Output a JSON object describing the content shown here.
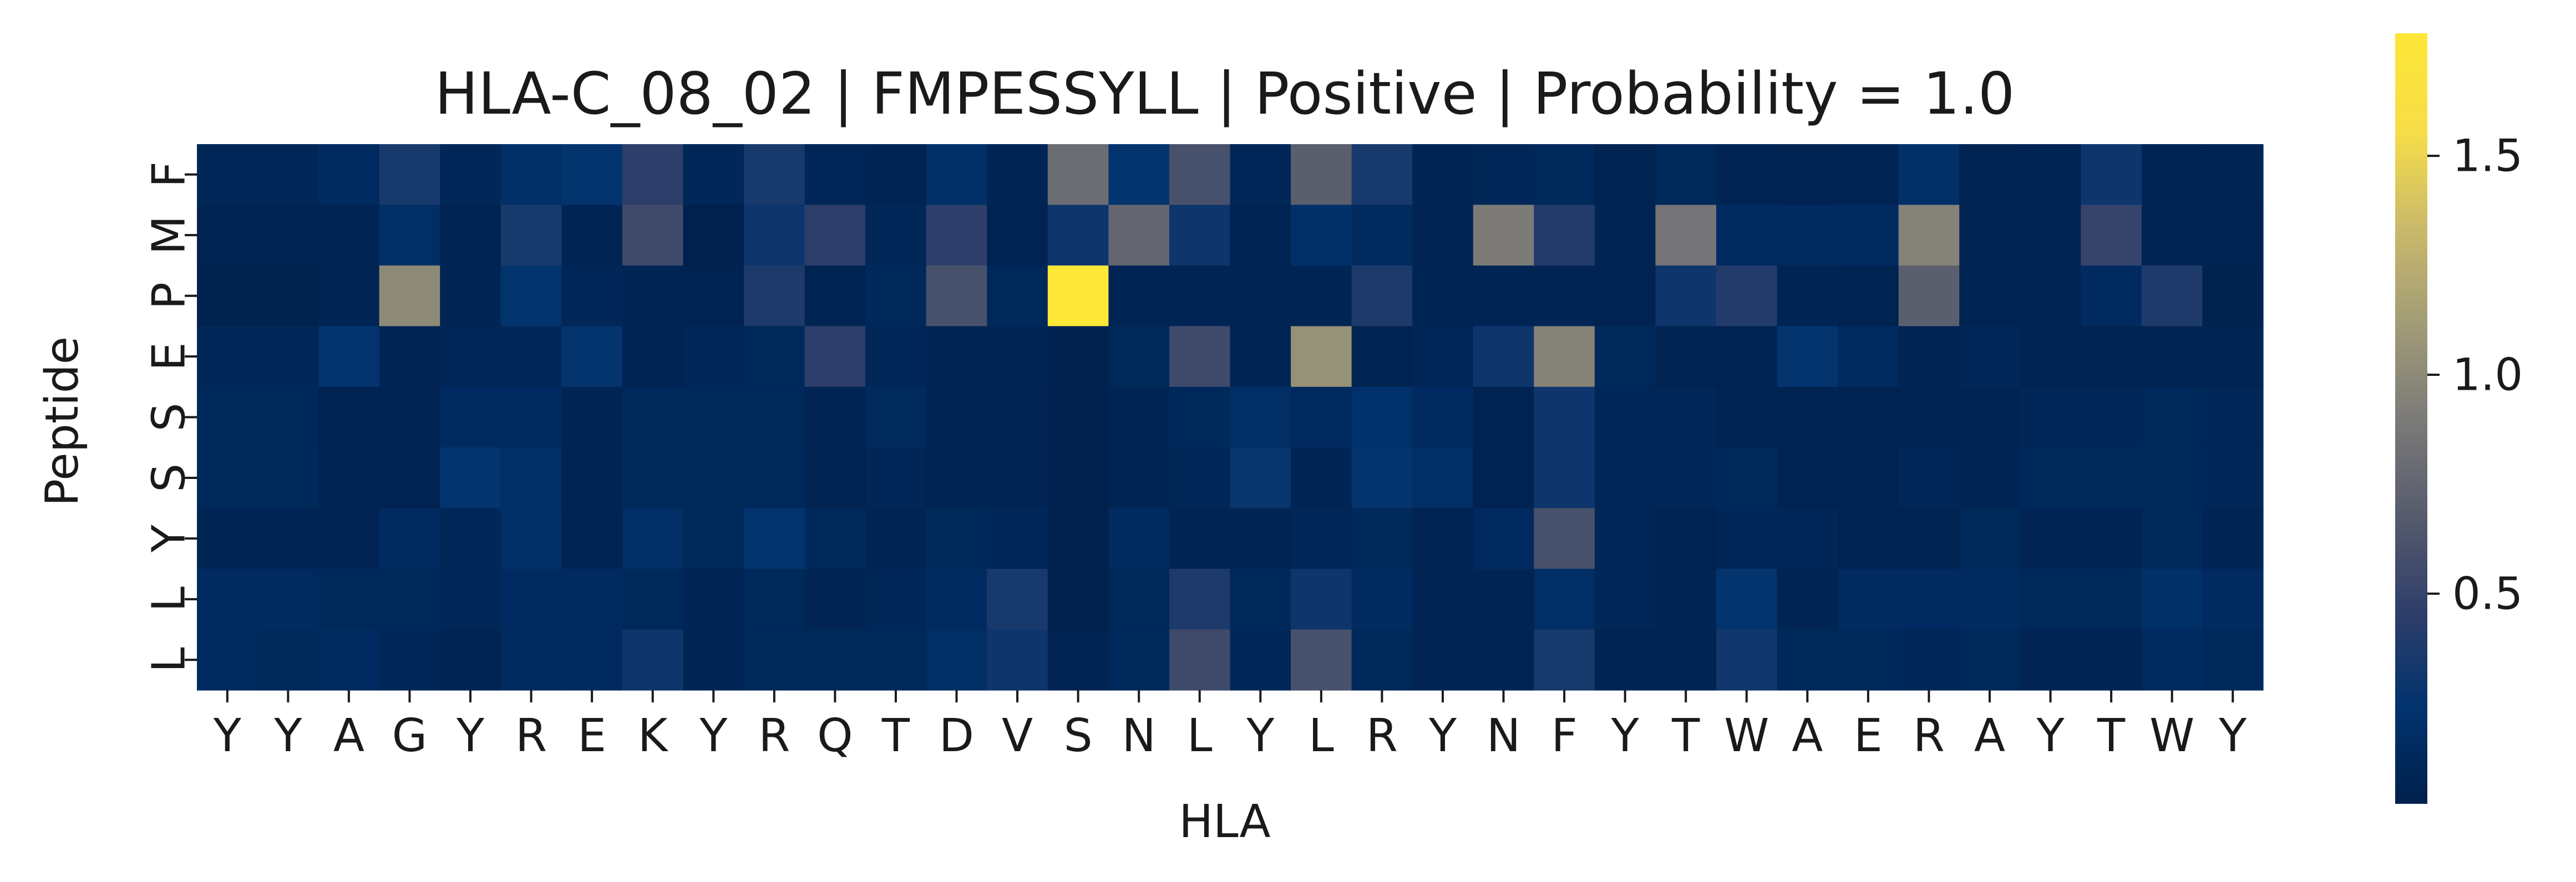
{
  "chart_data": {
    "type": "heatmap",
    "title": "HLA-C_08_02 | FMPESSYLL | Positive | Probability = 1.0",
    "xlabel": "HLA",
    "ylabel": "Peptide",
    "x_categories": [
      "Y",
      "Y",
      "A",
      "G",
      "Y",
      "R",
      "E",
      "K",
      "Y",
      "R",
      "Q",
      "T",
      "D",
      "V",
      "S",
      "N",
      "L",
      "Y",
      "L",
      "R",
      "Y",
      "N",
      "F",
      "Y",
      "T",
      "W",
      "A",
      "E",
      "R",
      "A",
      "Y",
      "T",
      "W",
      "Y"
    ],
    "y_categories": [
      "F",
      "M",
      "P",
      "E",
      "S",
      "S",
      "Y",
      "L",
      "L"
    ],
    "values": [
      [
        0.1,
        0.1,
        0.15,
        0.35,
        0.1,
        0.2,
        0.25,
        0.45,
        0.1,
        0.35,
        0.1,
        0.08,
        0.2,
        0.08,
        0.8,
        0.25,
        0.6,
        0.1,
        0.7,
        0.35,
        0.08,
        0.1,
        0.12,
        0.05,
        0.12,
        0.08,
        0.06,
        0.08,
        0.2,
        0.06,
        0.07,
        0.3,
        0.08,
        0.08
      ],
      [
        0.06,
        0.06,
        0.08,
        0.18,
        0.06,
        0.35,
        0.08,
        0.55,
        0.03,
        0.3,
        0.45,
        0.1,
        0.45,
        0.05,
        0.3,
        0.75,
        0.3,
        0.05,
        0.2,
        0.14,
        0.08,
        0.9,
        0.4,
        0.08,
        0.85,
        0.15,
        0.15,
        0.15,
        0.95,
        0.08,
        0.05,
        0.5,
        0.08,
        0.05
      ],
      [
        0.04,
        0.04,
        0.07,
        1.0,
        0.07,
        0.25,
        0.1,
        0.08,
        0.06,
        0.38,
        0.06,
        0.12,
        0.6,
        0.12,
        1.78,
        0.08,
        0.08,
        0.08,
        0.08,
        0.38,
        0.08,
        0.08,
        0.08,
        0.05,
        0.3,
        0.4,
        0.08,
        0.05,
        0.7,
        0.05,
        0.05,
        0.15,
        0.38,
        0.04
      ],
      [
        0.1,
        0.1,
        0.25,
        0.07,
        0.1,
        0.1,
        0.25,
        0.05,
        0.1,
        0.12,
        0.45,
        0.1,
        0.08,
        0.08,
        0.03,
        0.12,
        0.55,
        0.07,
        1.05,
        0.05,
        0.1,
        0.3,
        0.95,
        0.12,
        0.06,
        0.05,
        0.25,
        0.15,
        0.07,
        0.1,
        0.05,
        0.05,
        0.05,
        0.07
      ],
      [
        0.12,
        0.12,
        0.06,
        0.06,
        0.15,
        0.15,
        0.08,
        0.12,
        0.12,
        0.12,
        0.07,
        0.13,
        0.07,
        0.07,
        0.03,
        0.08,
        0.12,
        0.18,
        0.15,
        0.22,
        0.15,
        0.05,
        0.3,
        0.1,
        0.1,
        0.06,
        0.05,
        0.06,
        0.07,
        0.07,
        0.1,
        0.1,
        0.12,
        0.1
      ],
      [
        0.12,
        0.12,
        0.07,
        0.05,
        0.25,
        0.18,
        0.08,
        0.12,
        0.12,
        0.12,
        0.05,
        0.1,
        0.07,
        0.07,
        0.03,
        0.08,
        0.1,
        0.28,
        0.08,
        0.25,
        0.18,
        0.05,
        0.3,
        0.1,
        0.1,
        0.12,
        0.06,
        0.06,
        0.1,
        0.07,
        0.12,
        0.12,
        0.12,
        0.1
      ],
      [
        0.08,
        0.08,
        0.08,
        0.15,
        0.1,
        0.2,
        0.07,
        0.18,
        0.12,
        0.25,
        0.12,
        0.07,
        0.12,
        0.1,
        0.03,
        0.15,
        0.08,
        0.08,
        0.1,
        0.12,
        0.06,
        0.15,
        0.6,
        0.1,
        0.05,
        0.1,
        0.1,
        0.05,
        0.05,
        0.12,
        0.08,
        0.08,
        0.12,
        0.08
      ],
      [
        0.15,
        0.15,
        0.12,
        0.12,
        0.1,
        0.15,
        0.15,
        0.12,
        0.07,
        0.12,
        0.08,
        0.1,
        0.15,
        0.35,
        0.03,
        0.12,
        0.38,
        0.12,
        0.3,
        0.15,
        0.08,
        0.08,
        0.18,
        0.1,
        0.08,
        0.25,
        0.08,
        0.15,
        0.15,
        0.15,
        0.12,
        0.12,
        0.2,
        0.15
      ],
      [
        0.15,
        0.12,
        0.15,
        0.1,
        0.08,
        0.15,
        0.15,
        0.3,
        0.08,
        0.12,
        0.12,
        0.12,
        0.18,
        0.3,
        0.05,
        0.12,
        0.55,
        0.1,
        0.6,
        0.12,
        0.08,
        0.08,
        0.35,
        0.08,
        0.07,
        0.32,
        0.12,
        0.12,
        0.1,
        0.12,
        0.08,
        0.08,
        0.15,
        0.12
      ]
    ],
    "zlim": [
      0.02,
      1.78
    ],
    "colorbar_ticks": [
      "0.5",
      "1.0",
      "1.5"
    ],
    "colorbar_tick_values": [
      0.5,
      1.0,
      1.5
    ],
    "colormap": "cividis",
    "colormap_stops": [
      "#00204c",
      "#01336e",
      "#2f3e6a",
      "#575c6d",
      "#7c7b78",
      "#a29c77",
      "#cbba69",
      "#f7de48",
      "#fde737"
    ],
    "grid": false,
    "legend": "colorbar-right"
  }
}
